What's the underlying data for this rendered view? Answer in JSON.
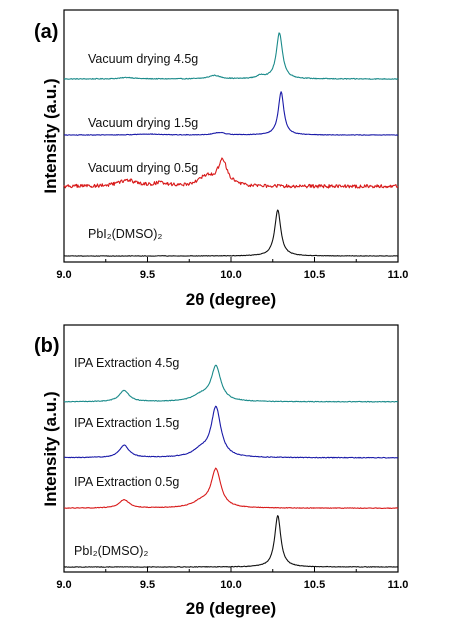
{
  "chart_data": [
    {
      "type": "line",
      "panel_label": "(a)",
      "xlabel": "2θ (degree)",
      "ylabel": "Intensity (a.u.)",
      "xlim": [
        9.0,
        11.0
      ],
      "x_ticks": [
        "9.0",
        "9.5",
        "10.0",
        "10.5",
        "11.0"
      ],
      "y_ticks_shown": false,
      "series": [
        {
          "label": "Vacuum drying 4.5g",
          "color": "#1a8a8a",
          "offset": 3,
          "noise": 0.008,
          "peaks": [
            {
              "x": 9.38,
              "height": 0.03,
              "width": 0.05
            },
            {
              "x": 9.9,
              "height": 0.07,
              "width": 0.04
            },
            {
              "x": 10.18,
              "height": 0.06,
              "width": 0.03
            },
            {
              "x": 10.29,
              "height": 0.92,
              "width": 0.022
            }
          ]
        },
        {
          "label": "Vacuum drying 1.5g",
          "color": "#1a1aa8",
          "offset": 2.05,
          "noise": 0.006,
          "peaks": [
            {
              "x": 9.5,
              "height": 0.02,
              "width": 0.08
            },
            {
              "x": 9.93,
              "height": 0.05,
              "width": 0.04
            },
            {
              "x": 10.3,
              "height": 0.86,
              "width": 0.02
            }
          ]
        },
        {
          "label": "Vacuum drying 0.5g",
          "color": "#d81a1a",
          "offset": 1.18,
          "noise": 0.035,
          "peaks": [
            {
              "x": 9.38,
              "height": 0.12,
              "width": 0.06
            },
            {
              "x": 9.58,
              "height": 0.06,
              "width": 0.05
            },
            {
              "x": 9.85,
              "height": 0.18,
              "width": 0.05
            },
            {
              "x": 9.95,
              "height": 0.5,
              "width": 0.035
            }
          ]
        },
        {
          "label": "PbI₂(DMSO)₂",
          "color": "#111111",
          "offset": 0,
          "noise": 0.005,
          "peaks": [
            {
              "x": 10.28,
              "height": 0.92,
              "width": 0.022
            }
          ]
        }
      ]
    },
    {
      "type": "line",
      "panel_label": "(b)",
      "xlabel": "2θ (degree)",
      "ylabel": "Intensity (a.u.)",
      "xlim": [
        9.0,
        11.0
      ],
      "x_ticks": [
        "9.0",
        "9.5",
        "10.0",
        "10.5",
        "11.0"
      ],
      "y_ticks_shown": false,
      "series": [
        {
          "label": "IPA Extraction 4.5g",
          "color": "#1a8a8a",
          "offset": 2.95,
          "noise": 0.006,
          "peaks": [
            {
              "x": 9.36,
              "height": 0.2,
              "width": 0.035
            },
            {
              "x": 9.82,
              "height": 0.1,
              "width": 0.06
            },
            {
              "x": 9.91,
              "height": 0.62,
              "width": 0.035
            }
          ]
        },
        {
          "label": "IPA Extraction 1.5g",
          "color": "#1a1aa8",
          "offset": 1.95,
          "noise": 0.006,
          "peaks": [
            {
              "x": 9.36,
              "height": 0.22,
              "width": 0.035
            },
            {
              "x": 9.82,
              "height": 0.12,
              "width": 0.06
            },
            {
              "x": 9.91,
              "height": 0.88,
              "width": 0.035
            }
          ]
        },
        {
          "label": "IPA Extraction 0.5g",
          "color": "#d81a1a",
          "offset": 1.05,
          "noise": 0.006,
          "peaks": [
            {
              "x": 9.36,
              "height": 0.15,
              "width": 0.035
            },
            {
              "x": 9.82,
              "height": 0.1,
              "width": 0.06
            },
            {
              "x": 9.91,
              "height": 0.68,
              "width": 0.035
            }
          ]
        },
        {
          "label": "PbI₂(DMSO)₂",
          "color": "#111111",
          "offset": 0,
          "noise": 0.005,
          "peaks": [
            {
              "x": 10.28,
              "height": 0.92,
              "width": 0.022
            }
          ]
        }
      ]
    }
  ]
}
